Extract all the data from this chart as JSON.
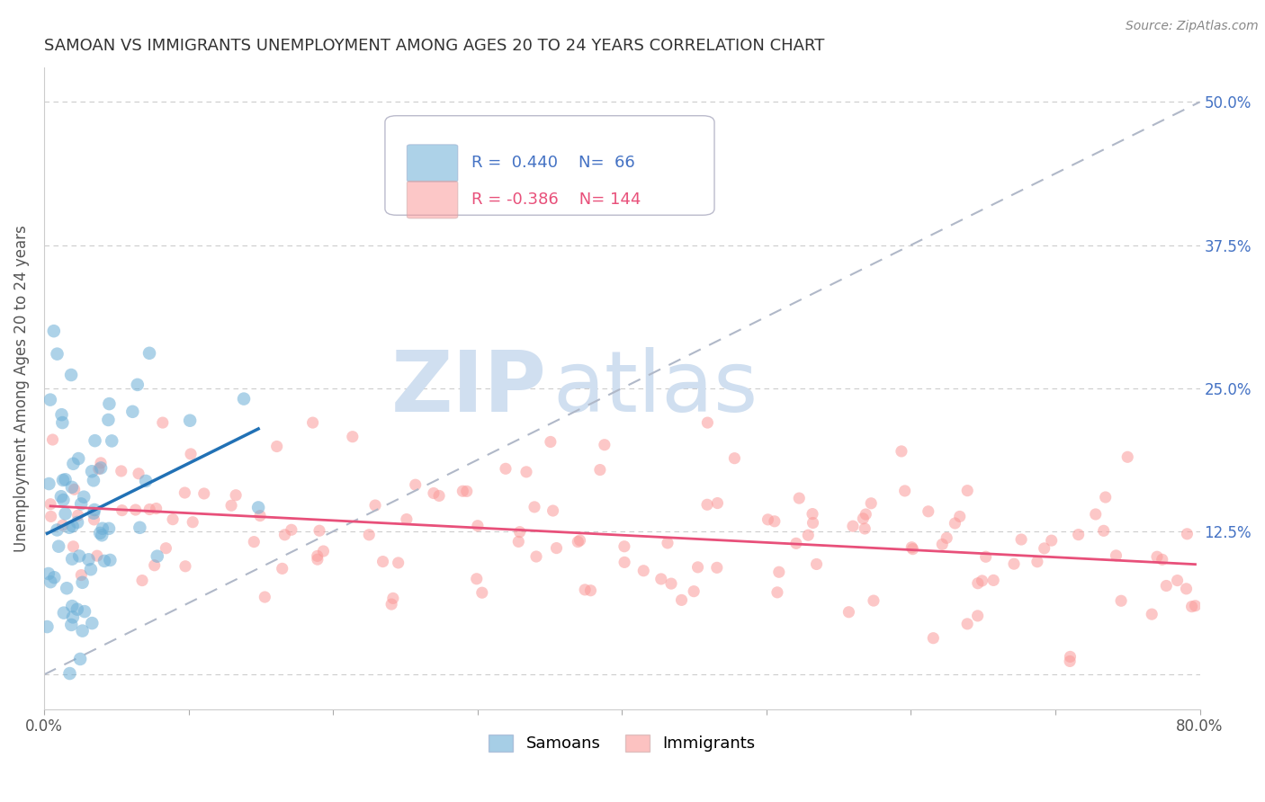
{
  "title": "SAMOAN VS IMMIGRANTS UNEMPLOYMENT AMONG AGES 20 TO 24 YEARS CORRELATION CHART",
  "source": "Source: ZipAtlas.com",
  "ylabel": "Unemployment Among Ages 20 to 24 years",
  "xlim": [
    0.0,
    0.8
  ],
  "ylim": [
    -0.03,
    0.53
  ],
  "samoans_R": 0.44,
  "samoans_N": 66,
  "immigrants_R": -0.386,
  "immigrants_N": 144,
  "legend_label_samoans": "Samoans",
  "legend_label_immigrants": "Immigrants",
  "samoans_color": "#6baed6",
  "immigrants_color": "#fb9a99",
  "samoans_line_color": "#2171b5",
  "immigrants_line_color": "#e8507a",
  "diagonal_color": "#b0b8c8",
  "watermark_zip": "ZIP",
  "watermark_atlas": "atlas",
  "watermark_color": "#d0dff0",
  "title_fontsize": 13,
  "source_fontsize": 10,
  "legend_fontsize": 13,
  "axis_label_fontsize": 12,
  "tick_fontsize": 12,
  "right_tick_color": "#4472c4",
  "background_color": "#ffffff"
}
